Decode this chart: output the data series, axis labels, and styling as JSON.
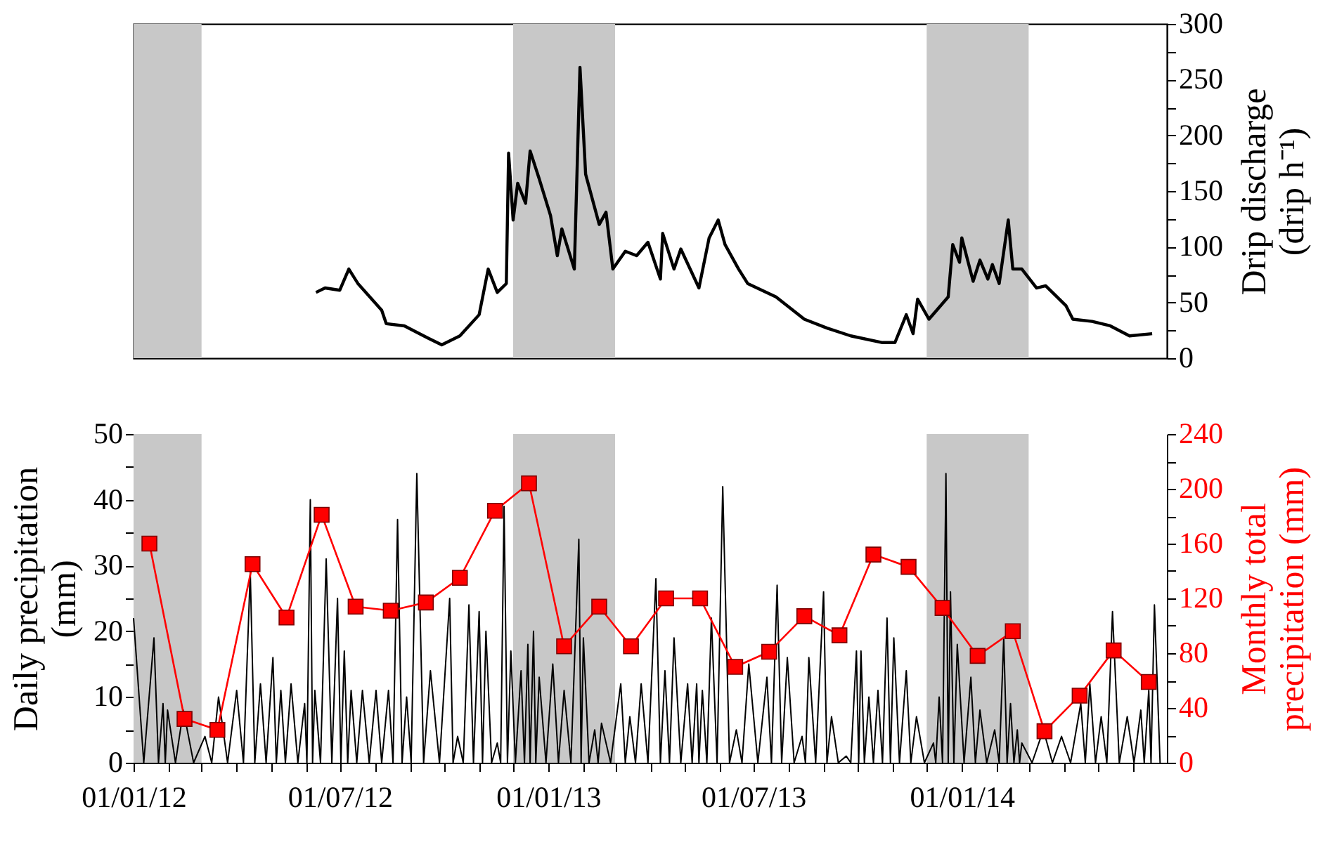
{
  "chart_data": [
    {
      "type": "line",
      "ylabel": "Drip discharge (drip h⁻¹)",
      "xlim": [
        "2012-01-01",
        "2014-07-01"
      ],
      "ylim": [
        0,
        300
      ],
      "yticks": [
        0,
        {
          "value": 25,
          "label": null
        },
        50,
        {
          "value": 75,
          "label": null
        },
        100,
        {
          "value": 125,
          "label": null
        },
        150,
        {
          "value": 175,
          "label": null
        },
        200,
        {
          "value": 225,
          "label": null
        },
        250,
        {
          "value": 275,
          "label": null
        },
        300
      ],
      "tick_labels": "y",
      "grid": false,
      "bands": [
        {
          "axis": "x",
          "from": "2012-01-01",
          "to": "2012-03-01",
          "color": "#c8c8c8"
        },
        {
          "axis": "x",
          "from": "2012-12-01",
          "to": "2013-03-01",
          "color": "#c8c8c8"
        },
        {
          "axis": "x",
          "from": "2013-12-01",
          "to": "2014-03-01",
          "color": "#c8c8c8"
        }
      ],
      "series": [
        {
          "color": "#000000",
          "axis": "y",
          "x": [
            "2012-06-10",
            "2012-06-18",
            "2012-07-01",
            "2012-07-09",
            "2012-07-17",
            "2012-08-07",
            "2012-08-11",
            "2012-08-27",
            "2012-09-17",
            "2012-09-29",
            "2012-10-15",
            "2012-11-01",
            "2012-11-09",
            "2012-11-17",
            "2012-11-25",
            "2012-11-27",
            "2012-12-01",
            "2012-12-05",
            "2012-12-12",
            "2012-12-16",
            "2012-12-24",
            "2013-01-03",
            "2013-01-09",
            "2013-01-13",
            "2013-01-24",
            "2013-01-29",
            "2013-02-03",
            "2013-02-15",
            "2013-02-21",
            "2013-02-27",
            "2013-03-10",
            "2013-03-20",
            "2013-03-30",
            "2013-04-10",
            "2013-04-12",
            "2013-04-22",
            "2013-04-28",
            "2013-05-14",
            "2013-05-23",
            "2013-05-31",
            "2013-06-06",
            "2013-06-18",
            "2013-06-26",
            "2013-07-21",
            "2013-08-15",
            "2013-09-04",
            "2013-09-25",
            "2013-10-23",
            "2013-11-03",
            "2013-11-13",
            "2013-11-19",
            "2013-11-23",
            "2013-12-03",
            "2013-12-20",
            "2013-12-24",
            "2013-12-30",
            "2014-01-01",
            "2014-01-11",
            "2014-01-17",
            "2014-01-24",
            "2014-01-28",
            "2014-02-03",
            "2014-02-11",
            "2014-02-15",
            "2014-02-23",
            "2014-03-08",
            "2014-03-16",
            "2014-04-03",
            "2014-04-09",
            "2014-04-26",
            "2014-05-12",
            "2014-05-29",
            "2014-06-18"
          ],
          "values": [
            59,
            63,
            61,
            80,
            67,
            43,
            31,
            29,
            18,
            12,
            20,
            39,
            80,
            59,
            67,
            184,
            124,
            157,
            139,
            186,
            161,
            128,
            92,
            116,
            80,
            261,
            165,
            120,
            131,
            80,
            96,
            92,
            104,
            71,
            112,
            80,
            98,
            63,
            108,
            124,
            102,
            80,
            67,
            55,
            35,
            27,
            20,
            14,
            14,
            39,
            22,
            53,
            35,
            55,
            102,
            86,
            108,
            69,
            88,
            71,
            84,
            67,
            124,
            80,
            80,
            63,
            65,
            47,
            35,
            33,
            29,
            20,
            22
          ]
        }
      ]
    },
    {
      "type": "line",
      "ylabel": "Daily precipitation (mm)",
      "y2label": "Monthly total precipitation (mm)",
      "xlim": [
        "2012-01-01",
        "2014-07-01"
      ],
      "ylim": [
        0,
        50
      ],
      "y2lim": [
        0,
        240
      ],
      "xticks": [
        {
          "value": "2012-01-01",
          "label": "01/01/12"
        },
        {
          "value": "2012-02-01",
          "label": null
        },
        {
          "value": "2012-03-01",
          "label": null
        },
        {
          "value": "2012-04-01",
          "label": null
        },
        {
          "value": "2012-05-01",
          "label": null
        },
        {
          "value": "2012-06-01",
          "label": null
        },
        {
          "value": "2012-07-01",
          "label": "01/07/12"
        },
        {
          "value": "2012-08-01",
          "label": null
        },
        {
          "value": "2012-09-01",
          "label": null
        },
        {
          "value": "2012-10-01",
          "label": null
        },
        {
          "value": "2012-11-01",
          "label": null
        },
        {
          "value": "2012-12-01",
          "label": null
        },
        {
          "value": "2013-01-01",
          "label": "01/01/13"
        },
        {
          "value": "2013-02-01",
          "label": null
        },
        {
          "value": "2013-03-01",
          "label": null
        },
        {
          "value": "2013-04-01",
          "label": null
        },
        {
          "value": "2013-05-01",
          "label": null
        },
        {
          "value": "2013-06-01",
          "label": null
        },
        {
          "value": "2013-07-01",
          "label": "01/07/13"
        },
        {
          "value": "2013-08-01",
          "label": null
        },
        {
          "value": "2013-09-01",
          "label": null
        },
        {
          "value": "2013-10-01",
          "label": null
        },
        {
          "value": "2013-11-01",
          "label": null
        },
        {
          "value": "2013-12-01",
          "label": null
        },
        {
          "value": "2014-01-01",
          "label": "01/01/14"
        },
        {
          "value": "2014-02-01",
          "label": null
        },
        {
          "value": "2014-03-01",
          "label": null
        },
        {
          "value": "2014-04-01",
          "label": null
        },
        {
          "value": "2014-05-01",
          "label": null
        },
        {
          "value": "2014-06-01",
          "label": null
        }
      ],
      "yticks": [
        0,
        {
          "value": 5,
          "label": null
        },
        10,
        {
          "value": 15,
          "label": null
        },
        20,
        {
          "value": 25,
          "label": null
        },
        30,
        {
          "value": 35,
          "label": null
        },
        40,
        {
          "value": 45,
          "label": null
        },
        50
      ],
      "y2ticks": [
        0,
        {
          "value": 20,
          "label": null
        },
        40,
        {
          "value": 60,
          "label": null
        },
        80,
        {
          "value": 100,
          "label": null
        },
        120,
        {
          "value": 140,
          "label": null
        },
        160,
        {
          "value": 180,
          "label": null
        },
        200,
        {
          "value": 220,
          "label": null
        },
        240
      ],
      "grid": false,
      "bands": [
        {
          "axis": "x",
          "from": "2012-01-01",
          "to": "2012-03-01",
          "color": "#c8c8c8"
        },
        {
          "axis": "x",
          "from": "2012-12-01",
          "to": "2013-03-01",
          "color": "#c8c8c8"
        },
        {
          "axis": "x",
          "from": "2013-12-01",
          "to": "2014-03-01",
          "color": "#c8c8c8"
        }
      ],
      "series": [
        {
          "color": "#000000",
          "axis": "y",
          "x": [
            "2012-01-01",
            "2012-01-10",
            "2012-01-19",
            "2012-01-23",
            "2012-01-27",
            "2012-01-29",
            "2012-01-31",
            "2012-02-07",
            "2012-02-14",
            "2012-02-23",
            "2012-03-04",
            "2012-03-10",
            "2012-03-16",
            "2012-03-24",
            "2012-04-01",
            "2012-04-07",
            "2012-04-13",
            "2012-04-17",
            "2012-04-22",
            "2012-04-27",
            "2012-05-03",
            "2012-05-06",
            "2012-05-10",
            "2012-05-14",
            "2012-05-19",
            "2012-05-25",
            "2012-05-31",
            "2012-06-02",
            "2012-06-05",
            "2012-06-07",
            "2012-06-09",
            "2012-06-14",
            "2012-06-19",
            "2012-06-24",
            "2012-06-29",
            "2012-07-02",
            "2012-07-05",
            "2012-07-08",
            "2012-07-11",
            "2012-07-16",
            "2012-07-21",
            "2012-07-27",
            "2012-08-02",
            "2012-08-07",
            "2012-08-13",
            "2012-08-17",
            "2012-08-21",
            "2012-08-25",
            "2012-08-29",
            "2012-09-02",
            "2012-09-07",
            "2012-09-13",
            "2012-09-19",
            "2012-09-27",
            "2012-10-06",
            "2012-10-09",
            "2012-10-13",
            "2012-10-18",
            "2012-10-23",
            "2012-10-27",
            "2012-11-01",
            "2012-11-04",
            "2012-11-07",
            "2012-11-12",
            "2012-11-17",
            "2012-11-20",
            "2012-11-23",
            "2012-11-26",
            "2012-11-29",
            "2012-12-03",
            "2012-12-08",
            "2012-12-11",
            "2012-12-14",
            "2012-12-16",
            "2012-12-19",
            "2012-12-21",
            "2012-12-24",
            "2012-12-30",
            "2013-01-05",
            "2013-01-10",
            "2013-01-15",
            "2013-01-21",
            "2013-01-28",
            "2013-01-30",
            "2013-02-01",
            "2013-02-06",
            "2013-02-11",
            "2013-02-14",
            "2013-02-17",
            "2013-02-25",
            "2013-03-06",
            "2013-03-10",
            "2013-03-14",
            "2013-03-19",
            "2013-03-24",
            "2013-03-30",
            "2013-04-06",
            "2013-04-10",
            "2013-04-14",
            "2013-04-18",
            "2013-04-22",
            "2013-04-28",
            "2013-05-04",
            "2013-05-08",
            "2013-05-12",
            "2013-05-14",
            "2013-05-17",
            "2013-05-21",
            "2013-05-25",
            "2013-05-30",
            "2013-06-04",
            "2013-06-10",
            "2013-06-16",
            "2013-06-21",
            "2013-06-27",
            "2013-07-05",
            "2013-07-13",
            "2013-07-17",
            "2013-07-22",
            "2013-07-26",
            "2013-07-31",
            "2013-08-06",
            "2013-08-13",
            "2013-08-16",
            "2013-08-19",
            "2013-08-25",
            "2013-09-01",
            "2013-09-04",
            "2013-09-08",
            "2013-09-14",
            "2013-09-21",
            "2013-09-25",
            "2013-09-30",
            "2013-10-02",
            "2013-10-04",
            "2013-10-07",
            "2013-10-11",
            "2013-10-15",
            "2013-10-19",
            "2013-10-23",
            "2013-10-27",
            "2013-10-30",
            "2013-11-02",
            "2013-11-07",
            "2013-11-13",
            "2013-11-17",
            "2013-11-22",
            "2013-11-29",
            "2013-12-07",
            "2013-12-09",
            "2013-12-12",
            "2013-12-15",
            "2013-12-18",
            "2013-12-20",
            "2013-12-22",
            "2013-12-25",
            "2013-12-28",
            "2014-01-03",
            "2014-01-09",
            "2014-01-13",
            "2014-01-17",
            "2014-01-23",
            "2014-01-30",
            "2014-02-03",
            "2014-02-07",
            "2014-02-10",
            "2014-02-13",
            "2014-02-16",
            "2014-02-19",
            "2014-02-21",
            "2014-02-23",
            "2014-03-04",
            "2014-03-14",
            "2014-03-22",
            "2014-03-30",
            "2014-04-07",
            "2014-04-16",
            "2014-04-20",
            "2014-04-24",
            "2014-04-29",
            "2014-05-04",
            "2014-05-09",
            "2014-05-14",
            "2014-05-20",
            "2014-05-27",
            "2014-06-02",
            "2014-06-08",
            "2014-06-11",
            "2014-06-15",
            "2014-06-17",
            "2014-06-20",
            "2014-06-25"
          ],
          "values": [
            22,
            0,
            19,
            0,
            9,
            0,
            8,
            0,
            8,
            0,
            4,
            0,
            10,
            0,
            11,
            0,
            29,
            0,
            12,
            0,
            16,
            0,
            11,
            0,
            12,
            0,
            9,
            0,
            40,
            0,
            11,
            0,
            31,
            0,
            25,
            0,
            17,
            0,
            11,
            0,
            11,
            0,
            11,
            0,
            11,
            0,
            37,
            0,
            10,
            0,
            44,
            0,
            14,
            0,
            25,
            0,
            4,
            0,
            24,
            0,
            23,
            0,
            20,
            0,
            3,
            0,
            39,
            0,
            17,
            0,
            14,
            0,
            18,
            0,
            20,
            0,
            13,
            0,
            15,
            0,
            11,
            0,
            34,
            0,
            19,
            0,
            5,
            0,
            6,
            0,
            12,
            0,
            7,
            0,
            12,
            0,
            28,
            0,
            14,
            0,
            19,
            0,
            12,
            0,
            12,
            0,
            11,
            0,
            22,
            0,
            42,
            0,
            5,
            0,
            15,
            0,
            13,
            0,
            27,
            0,
            16,
            0,
            4,
            0,
            16,
            0,
            26,
            0,
            7,
            0,
            1,
            0,
            17,
            0,
            17,
            0,
            10,
            0,
            11,
            0,
            22,
            0,
            19,
            0,
            14,
            0,
            7,
            0,
            3,
            0,
            10,
            0,
            44,
            0,
            26,
            0,
            18,
            0,
            13,
            0,
            8,
            0,
            5,
            0,
            19,
            0,
            9,
            0,
            5,
            0,
            3,
            0,
            5,
            0,
            4,
            0,
            9,
            0,
            12,
            0,
            7,
            0,
            23,
            0,
            7,
            0,
            8,
            0,
            11,
            0,
            24,
            0
          ]
        },
        {
          "color": "#ff0000",
          "axis": "y2",
          "marker": "square",
          "x": [
            "2012-01-15",
            "2012-02-15",
            "2012-03-15",
            "2012-04-15",
            "2012-05-15",
            "2012-06-15",
            "2012-07-15",
            "2012-08-15",
            "2012-09-15",
            "2012-10-15",
            "2012-11-15",
            "2012-12-15",
            "2013-01-15",
            "2013-02-15",
            "2013-03-15",
            "2013-04-15",
            "2013-05-15",
            "2013-06-15",
            "2013-07-15",
            "2013-08-15",
            "2013-09-15",
            "2013-10-15",
            "2013-11-15",
            "2013-12-15",
            "2014-01-15",
            "2014-02-15",
            "2014-03-15",
            "2014-04-15",
            "2014-05-15",
            "2014-06-15"
          ],
          "values": [
            160,
            32,
            24,
            145,
            106,
            181,
            114,
            111,
            117,
            135,
            184,
            204,
            85,
            114,
            85,
            120,
            120,
            70,
            81,
            107,
            93,
            152,
            143,
            113,
            78,
            96,
            23,
            49,
            82,
            59
          ]
        }
      ]
    }
  ]
}
